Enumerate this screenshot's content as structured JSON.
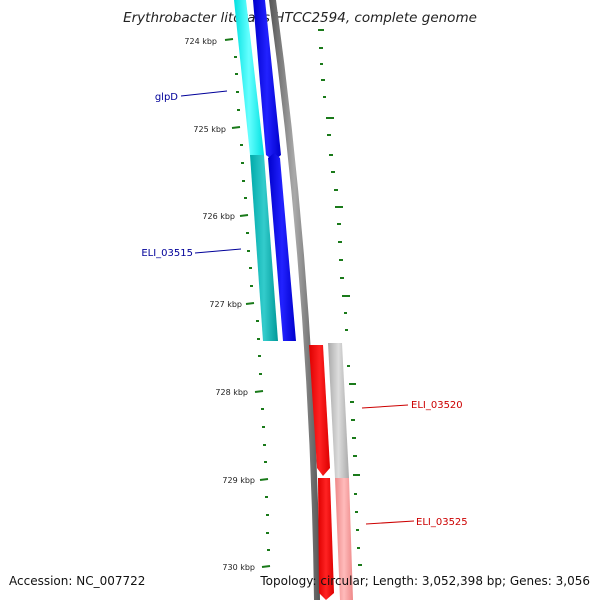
{
  "header": {
    "title": "Erythrobacter litoralis HTCC2594, complete genome"
  },
  "footer": {
    "accession": "Accession: NC_007722",
    "topology": "Topology: circular; Length: 3,052,398 bp; Genes: 3,056"
  },
  "ruler": {
    "ticks": [
      {
        "label": "724 kbp"
      },
      {
        "label": "725 kbp"
      },
      {
        "label": "726 kbp"
      },
      {
        "label": "727 kbp"
      },
      {
        "label": "728 kbp"
      },
      {
        "label": "729 kbp"
      },
      {
        "label": "730 kbp"
      }
    ]
  },
  "genes": [
    {
      "label": "glpD",
      "color": "#000099"
    },
    {
      "label": "ELI_03515",
      "color": "#000099"
    },
    {
      "label": "ELI_03520",
      "color": "#cc0000"
    },
    {
      "label": "ELI_03525",
      "color": "#cc0000"
    }
  ],
  "colors": {
    "forward_cds": "#0000ee",
    "forward_gene": "#00cccc",
    "reverse_cds": "#ff0000",
    "reverse_gene": "#ff9999",
    "backbone": "#777777",
    "gc_skew": "#1a7a1a"
  }
}
